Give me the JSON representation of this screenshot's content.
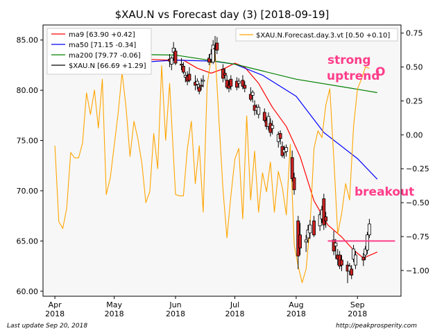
{
  "chart_data": {
    "type": "line",
    "title": "$XAU.N vs Forecast day (3)  [2018-09-19]",
    "x_range": [
      "2018-03-26",
      "2018-09-23"
    ],
    "x_ticks": [
      {
        "date": "2018-04-01",
        "label1": "Apr",
        "label2": "2018"
      },
      {
        "date": "2018-05-01",
        "label1": "May",
        "label2": "2018"
      },
      {
        "date": "2018-06-01",
        "label1": "Jun",
        "label2": "2018"
      },
      {
        "date": "2018-07-01",
        "label1": "Jul",
        "label2": "2018"
      },
      {
        "date": "2018-08-01",
        "label1": "Aug",
        "label2": "2018"
      },
      {
        "date": "2018-09-01",
        "label1": "Sep",
        "label2": "2018"
      }
    ],
    "y_left": {
      "range": [
        59.5,
        86.5
      ],
      "ticks": [
        60,
        65,
        70,
        75,
        80,
        85
      ],
      "tick_labels": [
        "60.00",
        "65.00",
        "70.00",
        "75.00",
        "80.00",
        "85.00"
      ]
    },
    "y_right": {
      "range": [
        -1.19,
        0.81
      ],
      "ticks": [
        -1.0,
        -0.75,
        -0.5,
        -0.25,
        0.0,
        0.25,
        0.5,
        0.75
      ],
      "tick_labels": [
        "−1.00",
        "−0.75",
        "−0.50",
        "−0.25",
        "0.00",
        "0.25",
        "0.50",
        "0.75"
      ]
    },
    "grid": false,
    "legend_left": [
      {
        "label": "ma9 [63.90 +0.42]",
        "color": "#ff0000"
      },
      {
        "label": "ma50 [71.15 -0.34]",
        "color": "#0000ff"
      },
      {
        "label": "ma200 [79.77 -0.06]",
        "color": "#008000"
      },
      {
        "label": "$XAU.N [66.69 +1.29]",
        "color": "#000000"
      }
    ],
    "legend_right": [
      {
        "label": "$XAU.N.Forecast.day.3.vt [0.50 +0.10]",
        "color": "#ffa500"
      }
    ],
    "candles": [
      [
        "2018-05-29",
        83.1,
        83.6,
        82.3,
        82.9
      ],
      [
        "2018-05-30",
        82.6,
        83.4,
        82.0,
        83.2
      ],
      [
        "2018-05-31",
        83.8,
        84.8,
        83.0,
        84.2
      ],
      [
        "2018-06-01",
        83.9,
        84.2,
        82.5,
        82.7
      ],
      [
        "2018-06-04",
        82.6,
        83.2,
        82.0,
        82.5
      ],
      [
        "2018-06-05",
        82.4,
        82.8,
        81.6,
        81.8
      ],
      [
        "2018-06-06",
        81.3,
        81.8,
        80.8,
        81.5
      ],
      [
        "2018-06-07",
        81.4,
        81.9,
        80.5,
        80.9
      ],
      [
        "2018-06-08",
        81.6,
        82.3,
        80.8,
        81.0
      ],
      [
        "2018-06-11",
        80.8,
        81.5,
        80.0,
        80.5
      ],
      [
        "2018-06-12",
        80.6,
        81.2,
        80.1,
        80.9
      ],
      [
        "2018-06-13",
        80.3,
        80.7,
        79.6,
        79.9
      ],
      [
        "2018-06-14",
        80.5,
        81.2,
        80.0,
        80.4
      ],
      [
        "2018-06-15",
        80.9,
        81.5,
        80.3,
        81.0
      ],
      [
        "2018-06-18",
        83.2,
        83.6,
        82.5,
        82.8
      ],
      [
        "2018-06-19",
        83.1,
        84.1,
        82.7,
        83.6
      ],
      [
        "2018-06-20",
        82.8,
        85.0,
        82.6,
        84.5
      ],
      [
        "2018-06-21",
        84.2,
        85.4,
        82.9,
        84.1
      ],
      [
        "2018-06-22",
        84.7,
        85.3,
        83.6,
        84.0
      ],
      [
        "2018-06-25",
        82.1,
        82.6,
        80.8,
        81.2
      ],
      [
        "2018-06-26",
        81.7,
        82.2,
        81.0,
        81.5
      ],
      [
        "2018-06-27",
        81.0,
        81.5,
        80.1,
        80.3
      ],
      [
        "2018-06-28",
        80.5,
        81.0,
        79.8,
        80.2
      ],
      [
        "2018-06-29",
        81.1,
        81.5,
        80.0,
        80.4
      ],
      [
        "2018-07-02",
        80.9,
        81.3,
        80.0,
        80.3
      ],
      [
        "2018-07-03",
        80.7,
        81.2,
        80.2,
        80.9
      ],
      [
        "2018-07-05",
        81.0,
        81.5,
        80.1,
        80.4
      ],
      [
        "2018-07-06",
        80.5,
        80.9,
        79.8,
        80.2
      ],
      [
        "2018-07-09",
        79.6,
        80.3,
        78.9,
        79.1
      ],
      [
        "2018-07-10",
        79.5,
        80.0,
        78.8,
        79.8
      ],
      [
        "2018-07-11",
        78.5,
        79.0,
        77.5,
        78.0
      ],
      [
        "2018-07-12",
        78.0,
        78.6,
        77.6,
        78.3
      ],
      [
        "2018-07-13",
        77.6,
        78.6,
        77.2,
        78.3
      ],
      [
        "2018-07-16",
        77.8,
        78.2,
        76.8,
        77.0
      ],
      [
        "2018-07-17",
        77.0,
        77.3,
        76.1,
        76.4
      ],
      [
        "2018-07-18",
        76.4,
        77.8,
        76.0,
        77.4
      ],
      [
        "2018-07-19",
        76.7,
        77.2,
        75.4,
        75.8
      ],
      [
        "2018-07-20",
        76.2,
        77.0,
        75.6,
        76.5
      ],
      [
        "2018-07-23",
        74.9,
        75.9,
        74.3,
        75.6
      ],
      [
        "2018-07-24",
        75.7,
        76.0,
        74.6,
        75.2
      ],
      [
        "2018-07-25",
        74.4,
        74.9,
        73.3,
        73.5
      ],
      [
        "2018-07-26",
        73.8,
        74.5,
        73.2,
        74.1
      ],
      [
        "2018-07-27",
        73.9,
        74.6,
        73.4,
        74.3
      ],
      [
        "2018-07-30",
        73.3,
        74.0,
        70.9,
        71.2
      ],
      [
        "2018-07-31",
        71.3,
        71.8,
        69.6,
        70.1
      ],
      [
        "2018-08-02",
        67.0,
        67.5,
        62.2,
        63.5
      ],
      [
        "2018-08-03",
        65.6,
        66.8,
        63.6,
        64.3
      ],
      [
        "2018-08-06",
        64.9,
        65.6,
        63.9,
        65.1
      ],
      [
        "2018-08-07",
        65.3,
        66.6,
        64.8,
        66.1
      ],
      [
        "2018-08-08",
        65.8,
        67.1,
        65.2,
        66.6
      ],
      [
        "2018-08-10",
        67.0,
        67.5,
        65.4,
        65.6
      ],
      [
        "2018-08-13",
        66.5,
        67.9,
        66.0,
        67.6
      ],
      [
        "2018-08-14",
        67.2,
        68.5,
        66.8,
        68.1
      ],
      [
        "2018-08-15",
        69.2,
        69.7,
        66.1,
        66.6
      ],
      [
        "2018-08-16",
        67.4,
        67.9,
        66.3,
        67.0
      ],
      [
        "2018-08-20",
        65.1,
        66.0,
        63.6,
        64.0
      ],
      [
        "2018-08-21",
        64.5,
        65.2,
        63.2,
        64.8
      ],
      [
        "2018-08-22",
        63.6,
        64.2,
        62.6,
        63.2
      ],
      [
        "2018-08-23",
        63.6,
        64.0,
        62.2,
        62.5
      ],
      [
        "2018-08-24",
        63.1,
        63.6,
        62.0,
        62.6
      ],
      [
        "2018-08-27",
        62.6,
        63.0,
        60.8,
        62.0
      ],
      [
        "2018-08-28",
        62.0,
        62.8,
        61.6,
        62.5
      ],
      [
        "2018-08-29",
        62.2,
        62.6,
        61.2,
        61.6
      ],
      [
        "2018-08-30",
        63.2,
        64.6,
        62.9,
        64.2
      ],
      [
        "2018-08-31",
        62.6,
        64.0,
        62.2,
        63.6
      ],
      [
        "2018-09-04",
        63.4,
        63.8,
        62.5,
        63.1
      ],
      [
        "2018-09-05",
        63.6,
        64.5,
        63.1,
        64.2
      ],
      [
        "2018-09-06",
        64.1,
        65.9,
        63.7,
        65.6
      ],
      [
        "2018-09-07",
        65.6,
        67.2,
        65.3,
        66.69
      ]
    ],
    "series": [
      {
        "name": "ma9",
        "axis": "left",
        "color": "#ff0000",
        "points": [
          [
            "2018-05-01",
            83.0
          ],
          [
            "2018-05-15",
            83.1
          ],
          [
            "2018-05-29",
            83.0
          ],
          [
            "2018-06-05",
            83.0
          ],
          [
            "2018-06-12",
            82.2
          ],
          [
            "2018-06-19",
            81.7
          ],
          [
            "2018-06-26",
            82.2
          ],
          [
            "2018-07-01",
            82.7
          ],
          [
            "2018-07-06",
            82.3
          ],
          [
            "2018-07-13",
            80.7
          ],
          [
            "2018-07-20",
            78.3
          ],
          [
            "2018-07-27",
            76.4
          ],
          [
            "2018-08-03",
            73.4
          ],
          [
            "2018-08-10",
            69.0
          ],
          [
            "2018-08-17",
            66.6
          ],
          [
            "2018-08-24",
            65.4
          ],
          [
            "2018-08-30",
            64.1
          ],
          [
            "2018-09-04",
            63.3
          ],
          [
            "2018-09-11",
            63.9
          ]
        ]
      },
      {
        "name": "ma50",
        "axis": "left",
        "color": "#0000ff",
        "points": [
          [
            "2018-05-01",
            82.9
          ],
          [
            "2018-05-15",
            82.8
          ],
          [
            "2018-06-01",
            83.0
          ],
          [
            "2018-06-20",
            82.9
          ],
          [
            "2018-07-01",
            82.6
          ],
          [
            "2018-07-15",
            81.5
          ],
          [
            "2018-08-01",
            79.4
          ],
          [
            "2018-08-15",
            75.8
          ],
          [
            "2018-09-01",
            73.2
          ],
          [
            "2018-09-11",
            71.15
          ]
        ]
      },
      {
        "name": "ma200",
        "axis": "left",
        "color": "#008000",
        "points": [
          [
            "2018-05-01",
            83.6
          ],
          [
            "2018-06-01",
            83.5
          ],
          [
            "2018-07-01",
            82.6
          ],
          [
            "2018-08-01",
            81.1
          ],
          [
            "2018-09-01",
            80.1
          ],
          [
            "2018-09-11",
            79.77
          ]
        ]
      },
      {
        "name": "$XAU.N.Forecast.day.3.vt",
        "axis": "right",
        "color": "#ffa500",
        "points": [
          [
            "2018-04-01",
            -0.08
          ],
          [
            "2018-04-03",
            -0.64
          ],
          [
            "2018-04-05",
            -0.69
          ],
          [
            "2018-04-07",
            -0.54
          ],
          [
            "2018-04-09",
            -0.13
          ],
          [
            "2018-04-11",
            -0.17
          ],
          [
            "2018-04-13",
            -0.17
          ],
          [
            "2018-04-15",
            -0.06
          ],
          [
            "2018-04-17",
            0.31
          ],
          [
            "2018-04-19",
            0.15
          ],
          [
            "2018-04-21",
            0.33
          ],
          [
            "2018-04-23",
            0.05
          ],
          [
            "2018-04-25",
            0.41
          ],
          [
            "2018-04-27",
            -0.44
          ],
          [
            "2018-04-29",
            -0.32
          ],
          [
            "2018-05-01",
            -0.08
          ],
          [
            "2018-05-03",
            0.16
          ],
          [
            "2018-05-05",
            0.46
          ],
          [
            "2018-05-07",
            0.2
          ],
          [
            "2018-05-09",
            -0.16
          ],
          [
            "2018-05-11",
            0.1
          ],
          [
            "2018-05-13",
            -0.03
          ],
          [
            "2018-05-15",
            -0.21
          ],
          [
            "2018-05-17",
            -0.5
          ],
          [
            "2018-05-19",
            -0.42
          ],
          [
            "2018-05-21",
            0.01
          ],
          [
            "2018-05-23",
            -0.25
          ],
          [
            "2018-05-25",
            0.51
          ],
          [
            "2018-05-27",
            -0.04
          ],
          [
            "2018-05-29",
            0.38
          ],
          [
            "2018-06-01",
            -0.44
          ],
          [
            "2018-06-03",
            -0.45
          ],
          [
            "2018-06-05",
            -0.45
          ],
          [
            "2018-06-07",
            -0.1
          ],
          [
            "2018-06-09",
            0.1
          ],
          [
            "2018-06-11",
            -0.36
          ],
          [
            "2018-06-13",
            -0.08
          ],
          [
            "2018-06-15",
            -0.57
          ],
          [
            "2018-06-17",
            0.37
          ],
          [
            "2018-06-19",
            0.56
          ],
          [
            "2018-06-21",
            0.62
          ],
          [
            "2018-06-23",
            0.1
          ],
          [
            "2018-06-25",
            -0.4
          ],
          [
            "2018-06-27",
            -0.76
          ],
          [
            "2018-06-29",
            -0.45
          ],
          [
            "2018-07-01",
            -0.18
          ],
          [
            "2018-07-03",
            -0.1
          ],
          [
            "2018-07-05",
            -0.62
          ],
          [
            "2018-07-07",
            0.14
          ],
          [
            "2018-07-09",
            -0.48
          ],
          [
            "2018-07-11",
            -0.12
          ],
          [
            "2018-07-13",
            -0.57
          ],
          [
            "2018-07-15",
            -0.28
          ],
          [
            "2018-07-17",
            -0.42
          ],
          [
            "2018-07-19",
            -0.2
          ],
          [
            "2018-07-21",
            -0.57
          ],
          [
            "2018-07-23",
            -0.27
          ],
          [
            "2018-07-25",
            -0.39
          ],
          [
            "2018-07-27",
            -0.59
          ],
          [
            "2018-07-29",
            -0.07
          ],
          [
            "2018-07-31",
            -0.81
          ],
          [
            "2018-08-02",
            -0.97
          ],
          [
            "2018-08-04",
            -1.09
          ],
          [
            "2018-08-06",
            -0.99
          ],
          [
            "2018-08-08",
            -0.67
          ],
          [
            "2018-08-10",
            -0.1
          ],
          [
            "2018-08-12",
            0.03
          ],
          [
            "2018-08-14",
            -0.02
          ],
          [
            "2018-08-16",
            0.22
          ],
          [
            "2018-08-18",
            0.34
          ],
          [
            "2018-08-20",
            -0.17
          ],
          [
            "2018-08-22",
            -0.73
          ],
          [
            "2018-08-24",
            -0.58
          ],
          [
            "2018-08-26",
            -0.36
          ],
          [
            "2018-08-28",
            -0.48
          ],
          [
            "2018-08-30",
            0.06
          ],
          [
            "2018-09-01",
            0.34
          ],
          [
            "2018-09-03",
            0.41
          ],
          [
            "2018-09-05",
            0.5
          ],
          [
            "2018-09-07",
            0.49
          ]
        ]
      }
    ],
    "hline": {
      "axis": "left",
      "value": 65.0,
      "from": "2018-08-17",
      "to": "2018-09-20",
      "color": "#ff3d8a"
    },
    "annotations": [
      {
        "line1": "strong",
        "line2": "uptrend",
        "marker": "O",
        "color": "#ff3d8a"
      },
      {
        "line1": "breakout",
        "color": "#ff3d8a"
      }
    ]
  },
  "footer": {
    "left": "Last update Sep 20, 2018",
    "right": "http://peakprosperity.com"
  }
}
